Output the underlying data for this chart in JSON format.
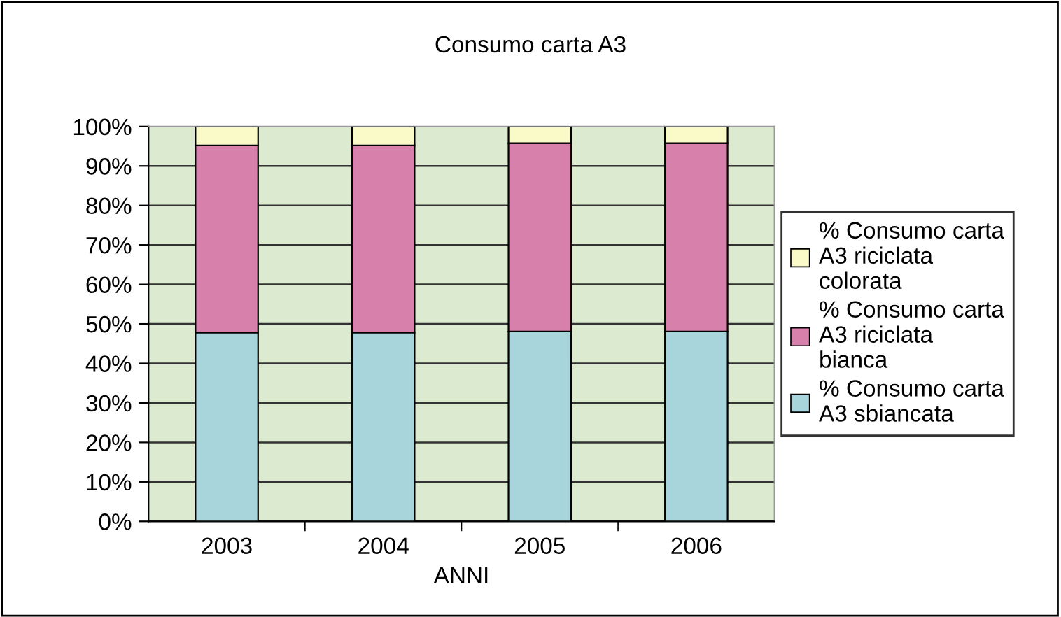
{
  "chart_data": {
    "type": "bar",
    "title": "Consumo carta A3",
    "xlabel": "ANNI",
    "categories": [
      "2003",
      "2004",
      "2005",
      "2006"
    ],
    "stacked": true,
    "series": [
      {
        "name": "% Consumo carta A3 sbiancata",
        "color": "#a8d4dc",
        "values": [
          47.8,
          47.8,
          48.1,
          48.1
        ]
      },
      {
        "name": "% Consumo carta A3 riciclata bianca",
        "color": "#d880ac",
        "values": [
          47.4,
          47.4,
          47.7,
          47.7
        ]
      },
      {
        "name": "% Consumo carta A3 riciclata colorata",
        "color": "#fafac8",
        "values": [
          4.8,
          4.8,
          4.2,
          4.2
        ]
      }
    ],
    "ylim": [
      0,
      100
    ],
    "yticks": [
      {
        "value": 0,
        "label": "0%"
      },
      {
        "value": 10,
        "label": "10%"
      },
      {
        "value": 20,
        "label": "20%"
      },
      {
        "value": 30,
        "label": "30%"
      },
      {
        "value": 40,
        "label": "40%"
      },
      {
        "value": 50,
        "label": "50%"
      },
      {
        "value": 60,
        "label": "60%"
      },
      {
        "value": 70,
        "label": "70%"
      },
      {
        "value": 80,
        "label": "80%"
      },
      {
        "value": 90,
        "label": "90%"
      },
      {
        "value": 100,
        "label": "100%"
      }
    ],
    "grid": "y",
    "legend": "right"
  }
}
